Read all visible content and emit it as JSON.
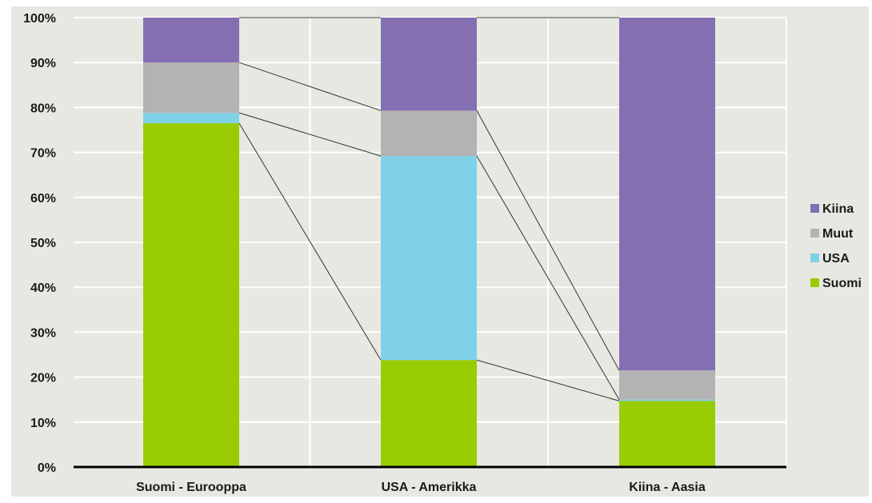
{
  "chart_data": {
    "type": "bar",
    "stacked": true,
    "percent": true,
    "categories": [
      "Suomi - Eurooppa",
      "USA - Amerikka",
      "Kiina - Aasia"
    ],
    "series": [
      {
        "name": "Suomi",
        "values": [
          76.5,
          23.8,
          14.7
        ],
        "color": "#99cc00"
      },
      {
        "name": "USA",
        "values": [
          2.3,
          45.4,
          0.3
        ],
        "color": "#7fd1e8"
      },
      {
        "name": "Muut",
        "values": [
          11.2,
          10.1,
          6.5
        ],
        "color": "#b3b3b3"
      },
      {
        "name": "Kiina",
        "values": [
          10.0,
          20.7,
          78.5
        ],
        "color": "#836fb2"
      }
    ],
    "legend_order": [
      "Kiina",
      "Muut",
      "USA",
      "Suomi"
    ],
    "ylim": [
      0,
      100
    ],
    "y_ticks": [
      "0%",
      "10%",
      "20%",
      "30%",
      "40%",
      "50%",
      "60%",
      "70%",
      "80%",
      "90%",
      "100%"
    ],
    "grid": true,
    "legend_position": "right",
    "connector_lines": true,
    "plot_background": "#e8e8e2",
    "grid_color": "#ffffff",
    "connector_color": "#333333"
  }
}
